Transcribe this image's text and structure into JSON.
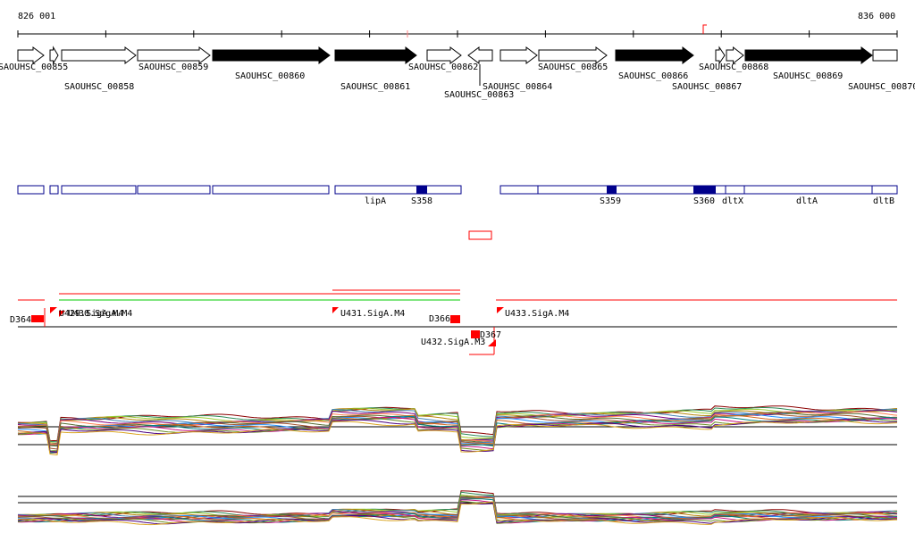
{
  "coordinates": {
    "start": "826 001",
    "end": "836 000"
  },
  "genes": [
    {
      "label": "SAOUHSC_00855",
      "fill": "white"
    },
    {
      "label": "",
      "fill": "white"
    },
    {
      "label": "SAOUHSC_00858",
      "fill": "white"
    },
    {
      "label": "SAOUHSC_00859",
      "fill": "white"
    },
    {
      "label": "SAOUHSC_00860",
      "fill": "black"
    },
    {
      "label": "SAOUHSC_00861",
      "fill": "black"
    },
    {
      "label": "SAOUHSC_00862",
      "fill": "white"
    },
    {
      "label": "SAOUHSC_00863",
      "fill": "white"
    },
    {
      "label": "SAOUHSC_00864",
      "fill": "white"
    },
    {
      "label": "SAOUHSC_00865",
      "fill": "white"
    },
    {
      "label": "SAOUHSC_00866",
      "fill": "black"
    },
    {
      "label": "SAOUHSC_00867",
      "fill": "white"
    },
    {
      "label": "SAOUHSC_00868",
      "fill": "white"
    },
    {
      "label": "SAOUHSC_00869",
      "fill": "black"
    },
    {
      "label": "SAOUHSC_00870",
      "fill": "white"
    }
  ],
  "annotation_labels": [
    "lipA",
    "S358",
    "S359",
    "S360",
    "dltX",
    "dltA",
    "dltB"
  ],
  "feature_labels": [
    "D364",
    "U429.SigA.M4",
    "U430.SigA.M4",
    "U431.SigA.M4",
    "D366",
    "D367",
    "U432.SigA.M3",
    "U433.SigA.M4"
  ],
  "colors": {
    "gene_black": "#000000",
    "annotation_blue": "#00008b",
    "feature_red": "#ff0000",
    "feature_green": "#00cc00",
    "axis": "#000000"
  }
}
